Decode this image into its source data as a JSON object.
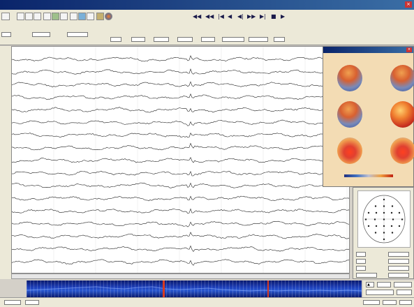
{
  "titlebar": {
    "title": ""
  },
  "map_panel": {
    "title": "",
    "footer_line1": "",
    "footer_line2": ""
  },
  "colors": {
    "titlebar": "#0a246a",
    "eeg_trace": "#222222",
    "map_bg": "#f3dcb4",
    "spectrogram": "#1e3fb8",
    "spectrogram_marker": "#d83a20"
  },
  "toolbar": {
    "left_icons": [
      "file-icon",
      "open-icon",
      "save-icon",
      "print-icon",
      "chart-icon",
      "filter-icon",
      "montage-icon",
      "zoom-icon",
      "settings-icon",
      "analysis-icon",
      "map-icon",
      "globe-icon"
    ],
    "playback_icons": [
      "rewind-icon",
      "fast-back-icon",
      "step-back-icon",
      "back-icon",
      "play-back-icon",
      "forward-icon",
      "step-forward-icon",
      "stop-icon",
      "play-icon"
    ]
  },
  "icons": {
    "electrode_grid": "electrode-grid-icon",
    "spectrogram": "spectrogram-icon",
    "head_model": "head-model-icon"
  }
}
